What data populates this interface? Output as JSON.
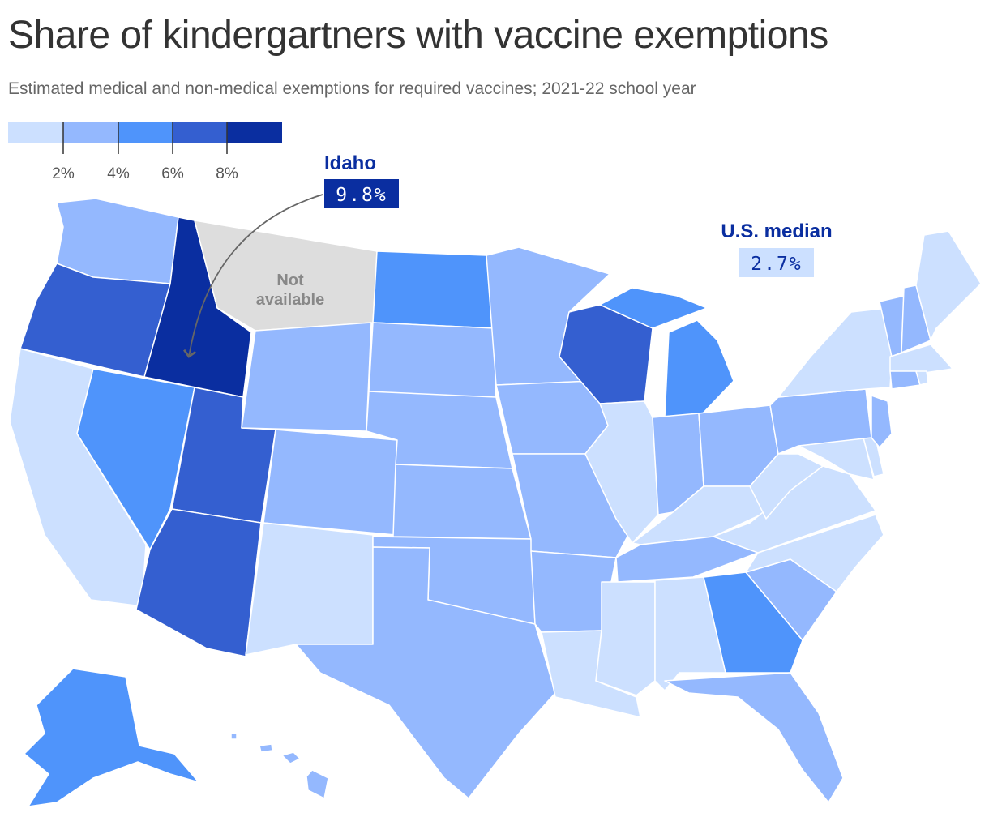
{
  "title": "Share of kindergartners with vaccine exemptions",
  "subtitle": "Estimated medical and non-medical exemptions for required vaccines; 2021-22 school year",
  "legend": {
    "colors": [
      "#cce0ff",
      "#94b8fe",
      "#4f94fb",
      "#345fd0",
      "#0a2ea0"
    ],
    "ticks": [
      "2%",
      "4%",
      "6%",
      "8%"
    ]
  },
  "colors": {
    "na": "#dddddd",
    "callout_text": "#0a2ea0",
    "arrow": "#666666"
  },
  "callouts": {
    "idaho": {
      "name": "Idaho",
      "value": "9.8%"
    },
    "median": {
      "name": "U.S. median",
      "value": "2.7%"
    }
  },
  "not_available": {
    "line1": "Not",
    "line2": "available"
  },
  "chart_data": {
    "type": "choropleth",
    "title": "Share of kindergartners with vaccine exemptions",
    "subtitle": "Estimated medical and non-medical exemptions for required vaccines; 2021-22 school year",
    "legend_bins": [
      "under 2%",
      "2–4%",
      "4–6%",
      "6–8%",
      "8% and over"
    ],
    "states": [
      {
        "state": "Alabama",
        "bin": "under 2%"
      },
      {
        "state": "Alaska",
        "bin": "4–6%"
      },
      {
        "state": "Arizona",
        "bin": "6–8%"
      },
      {
        "state": "Arkansas",
        "bin": "2–4%"
      },
      {
        "state": "California",
        "bin": "under 2%"
      },
      {
        "state": "Colorado",
        "bin": "2–4%"
      },
      {
        "state": "Connecticut",
        "bin": "2–4%"
      },
      {
        "state": "Delaware",
        "bin": "under 2%"
      },
      {
        "state": "Florida",
        "bin": "2–4%"
      },
      {
        "state": "Georgia",
        "bin": "4–6%"
      },
      {
        "state": "Hawaii",
        "bin": "2–4%"
      },
      {
        "state": "Idaho",
        "value": 9.8,
        "bin": "8% and over"
      },
      {
        "state": "Illinois",
        "bin": "under 2%"
      },
      {
        "state": "Indiana",
        "bin": "2–4%"
      },
      {
        "state": "Iowa",
        "bin": "2–4%"
      },
      {
        "state": "Kansas",
        "bin": "2–4%"
      },
      {
        "state": "Kentucky",
        "bin": "under 2%"
      },
      {
        "state": "Louisiana",
        "bin": "under 2%"
      },
      {
        "state": "Maine",
        "bin": "under 2%"
      },
      {
        "state": "Maryland",
        "bin": "under 2%"
      },
      {
        "state": "Massachusetts",
        "bin": "under 2%"
      },
      {
        "state": "Michigan",
        "bin": "4–6%"
      },
      {
        "state": "Minnesota",
        "bin": "2–4%"
      },
      {
        "state": "Mississippi",
        "bin": "under 2%"
      },
      {
        "state": "Missouri",
        "bin": "2–4%"
      },
      {
        "state": "Montana",
        "bin": "Not available"
      },
      {
        "state": "Nebraska",
        "bin": "2–4%"
      },
      {
        "state": "Nevada",
        "bin": "4–6%"
      },
      {
        "state": "New Hampshire",
        "bin": "2–4%"
      },
      {
        "state": "New Jersey",
        "bin": "2–4%"
      },
      {
        "state": "New Mexico",
        "bin": "under 2%"
      },
      {
        "state": "New York",
        "bin": "under 2%"
      },
      {
        "state": "North Carolina",
        "bin": "under 2%"
      },
      {
        "state": "North Dakota",
        "bin": "4–6%"
      },
      {
        "state": "Ohio",
        "bin": "2–4%"
      },
      {
        "state": "Oklahoma",
        "bin": "2–4%"
      },
      {
        "state": "Oregon",
        "bin": "6–8%"
      },
      {
        "state": "Pennsylvania",
        "bin": "2–4%"
      },
      {
        "state": "Rhode Island",
        "bin": "under 2%"
      },
      {
        "state": "South Carolina",
        "bin": "2–4%"
      },
      {
        "state": "South Dakota",
        "bin": "2–4%"
      },
      {
        "state": "Tennessee",
        "bin": "2–4%"
      },
      {
        "state": "Texas",
        "bin": "2–4%"
      },
      {
        "state": "Utah",
        "bin": "6–8%"
      },
      {
        "state": "Vermont",
        "bin": "2–4%"
      },
      {
        "state": "Virginia",
        "bin": "under 2%"
      },
      {
        "state": "Washington",
        "bin": "2–4%"
      },
      {
        "state": "West Virginia",
        "bin": "under 2%"
      },
      {
        "state": "Wisconsin",
        "bin": "6–8%"
      },
      {
        "state": "Wyoming",
        "bin": "2–4%"
      }
    ],
    "median": {
      "label": "U.S. median",
      "value": 2.7
    }
  }
}
